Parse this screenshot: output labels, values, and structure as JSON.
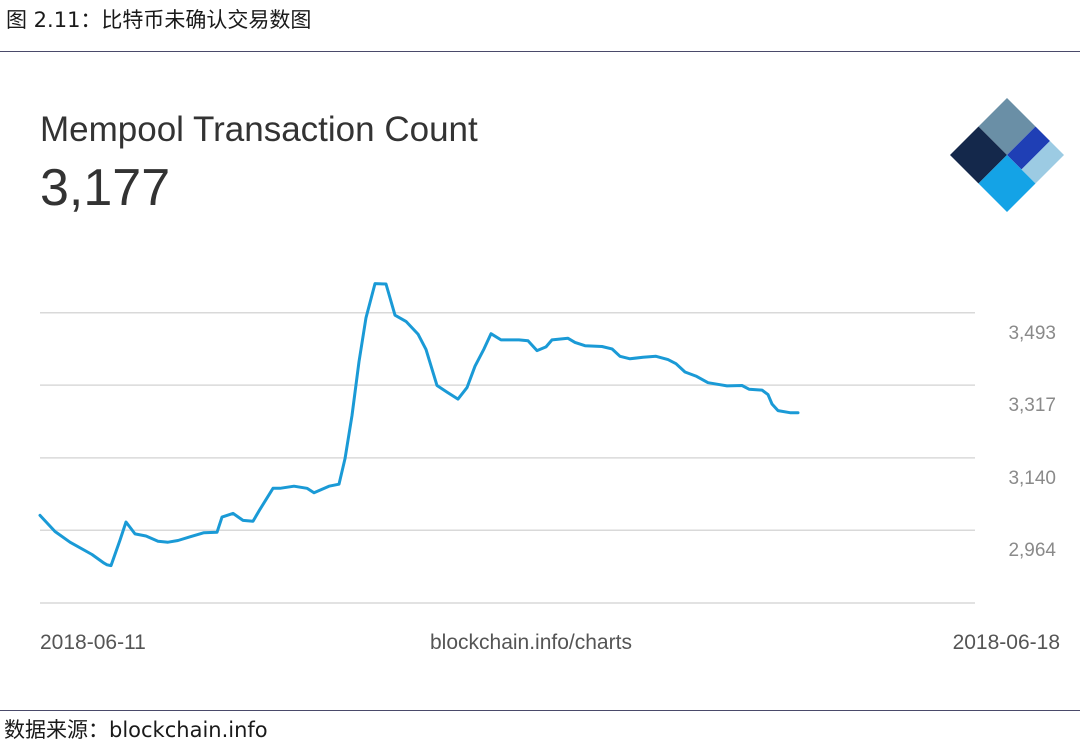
{
  "caption": {
    "figure_label": "图 2.11：比特币未确认交易数图",
    "source": "数据来源：blockchain.info"
  },
  "header": {
    "title": "Mempool Transaction Count",
    "current_value": "3,177"
  },
  "footer": {
    "x_start": "2018-06-11",
    "x_end": "2018-06-18",
    "attribution": "blockchain.info/charts"
  },
  "colors": {
    "line": "#1a9ad6",
    "grid": "#d9d9d9",
    "logo_dark": "#14284b",
    "logo_slate": "#6a8fa6",
    "logo_blue": "#1f3fb5",
    "logo_light": "#9ccbe3",
    "logo_bright": "#14a3e6"
  },
  "icons": {
    "logo": "blockchain-diamond-logo-icon"
  },
  "chart_data": {
    "type": "line",
    "title": "Mempool Transaction Count",
    "xlabel": "",
    "ylabel": "",
    "x_range": [
      "2018-06-11",
      "2018-06-18"
    ],
    "yticks": [
      3493,
      3317,
      3140,
      2964
    ],
    "ytick_labels": [
      "3,493",
      "3,317",
      "3,140",
      "2,964"
    ],
    "ylim": [
      2787,
      3670
    ],
    "grid": true,
    "legend": "none",
    "series": [
      {
        "values": [
          [
            0.0,
            3000
          ],
          [
            0.0169,
            2961
          ],
          [
            0.0337,
            2935
          ],
          [
            0.0584,
            2905
          ],
          [
            0.0719,
            2884
          ],
          [
            0.0753,
            2880
          ],
          [
            0.0798,
            2878
          ],
          [
            0.0899,
            2940
          ],
          [
            0.0966,
            2984
          ],
          [
            0.1067,
            2955
          ],
          [
            0.1191,
            2950
          ],
          [
            0.1326,
            2937
          ],
          [
            0.1438,
            2935
          ],
          [
            0.1551,
            2939
          ],
          [
            0.1685,
            2948
          ],
          [
            0.1843,
            2958
          ],
          [
            0.1989,
            2959
          ],
          [
            0.2045,
            2996
          ],
          [
            0.2169,
            3005
          ],
          [
            0.2281,
            2988
          ],
          [
            0.2393,
            2986
          ],
          [
            0.2472,
            3015
          ],
          [
            0.2618,
            3066
          ],
          [
            0.2697,
            3066
          ],
          [
            0.2854,
            3071
          ],
          [
            0.3,
            3066
          ],
          [
            0.3079,
            3055
          ],
          [
            0.3247,
            3071
          ],
          [
            0.336,
            3076
          ],
          [
            0.3427,
            3138
          ],
          [
            0.3506,
            3243
          ],
          [
            0.3584,
            3374
          ],
          [
            0.3663,
            3481
          ],
          [
            0.3764,
            3564
          ],
          [
            0.3888,
            3563
          ],
          [
            0.3989,
            3487
          ],
          [
            0.4112,
            3472
          ],
          [
            0.4247,
            3441
          ],
          [
            0.4337,
            3404
          ],
          [
            0.4461,
            3316
          ],
          [
            0.4573,
            3300
          ],
          [
            0.4697,
            3283
          ],
          [
            0.4798,
            3311
          ],
          [
            0.4888,
            3363
          ],
          [
            0.4989,
            3405
          ],
          [
            0.5067,
            3442
          ],
          [
            0.518,
            3427
          ],
          [
            0.5382,
            3427
          ],
          [
            0.5483,
            3425
          ],
          [
            0.5584,
            3401
          ],
          [
            0.5685,
            3410
          ],
          [
            0.5753,
            3427
          ],
          [
            0.5933,
            3431
          ],
          [
            0.6011,
            3421
          ],
          [
            0.6124,
            3413
          ],
          [
            0.6315,
            3411
          ],
          [
            0.6427,
            3405
          ],
          [
            0.6517,
            3387
          ],
          [
            0.6629,
            3381
          ],
          [
            0.6775,
            3385
          ],
          [
            0.6921,
            3387
          ],
          [
            0.7056,
            3379
          ],
          [
            0.7146,
            3369
          ],
          [
            0.7247,
            3349
          ],
          [
            0.7371,
            3339
          ],
          [
            0.7506,
            3323
          ],
          [
            0.764,
            3318
          ],
          [
            0.7719,
            3315
          ],
          [
            0.7888,
            3316
          ],
          [
            0.7966,
            3307
          ],
          [
            0.8112,
            3305
          ],
          [
            0.818,
            3294
          ],
          [
            0.8225,
            3271
          ],
          [
            0.8292,
            3255
          ],
          [
            0.8427,
            3250
          ],
          [
            0.8517,
            3250
          ]
        ]
      }
    ],
    "x_note": "x given as fraction of the 2018-06-11 to 2018-06-18 span"
  }
}
